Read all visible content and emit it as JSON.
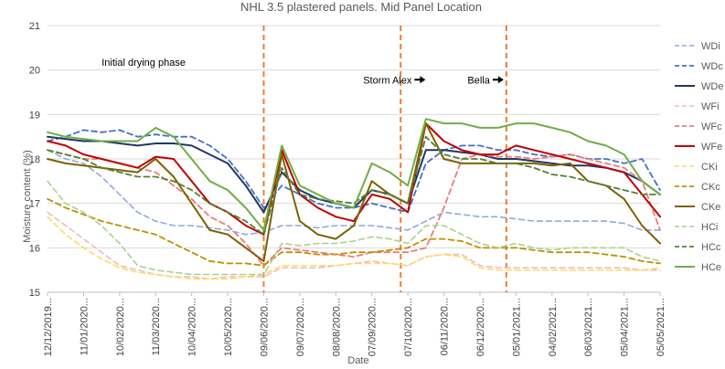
{
  "chart_data": {
    "type": "line",
    "title": "NHL 3.5 plastered panels. Mid Panel Location",
    "xlabel": "Date",
    "ylabel": "Moisture content (%)",
    "ylim": [
      15,
      21
    ],
    "yticks": [
      15,
      16,
      17,
      18,
      19,
      20,
      21
    ],
    "xlim": [
      "2019-12-12",
      "2021-05-05"
    ],
    "xticks": [
      {
        "date": "2019-12-12",
        "label": "12/12/2019..."
      },
      {
        "date": "2020-01-11",
        "label": "11/01/2020..."
      },
      {
        "date": "2020-02-10",
        "label": "10/02/2020..."
      },
      {
        "date": "2020-03-11",
        "label": "11/03/2020..."
      },
      {
        "date": "2020-04-10",
        "label": "10/04/2020..."
      },
      {
        "date": "2020-05-10",
        "label": "10/05/2020..."
      },
      {
        "date": "2020-06-09",
        "label": "09/06/2020..."
      },
      {
        "date": "2020-07-09",
        "label": "09/07/2020..."
      },
      {
        "date": "2020-08-08",
        "label": "08/08/2020..."
      },
      {
        "date": "2020-09-07",
        "label": "07/09/2020..."
      },
      {
        "date": "2020-10-07",
        "label": "07/10/2020..."
      },
      {
        "date": "2020-11-06",
        "label": "06/11/2020..."
      },
      {
        "date": "2020-12-06",
        "label": "06/12/2020..."
      },
      {
        "date": "2021-01-05",
        "label": "05/01/2021..."
      },
      {
        "date": "2021-02-04",
        "label": "04/02/2021..."
      },
      {
        "date": "2021-03-06",
        "label": "06/03/2021..."
      },
      {
        "date": "2021-04-05",
        "label": "05/04/2021..."
      },
      {
        "date": "2021-05-05",
        "label": "05/05/2021..."
      }
    ],
    "grid": "horizontal",
    "legend_position": "right",
    "annotations": [
      {
        "label": "Initial drying phase",
        "date": "2020-03-01",
        "y": 20.1,
        "arrow": false
      },
      {
        "label": "Storm Alex",
        "date": "2020-09-20",
        "y": 19.7,
        "arrow": true
      },
      {
        "label": "Bella",
        "date": "2020-12-05",
        "y": 19.7,
        "arrow": true
      }
    ],
    "event_lines": [
      {
        "date": "2020-06-09",
        "color": "#ed7d31"
      },
      {
        "date": "2020-10-01",
        "color": "#ed7d31"
      },
      {
        "date": "2020-12-28",
        "color": "#ed7d31"
      }
    ],
    "x": [
      "2019-12-12",
      "2019-12-27",
      "2020-01-11",
      "2020-01-26",
      "2020-02-10",
      "2020-02-25",
      "2020-03-11",
      "2020-03-26",
      "2020-04-10",
      "2020-04-25",
      "2020-05-10",
      "2020-05-25",
      "2020-06-09",
      "2020-06-24",
      "2020-07-09",
      "2020-07-24",
      "2020-08-08",
      "2020-08-23",
      "2020-09-07",
      "2020-09-22",
      "2020-10-07",
      "2020-10-22",
      "2020-11-06",
      "2020-11-21",
      "2020-12-06",
      "2020-12-21",
      "2021-01-05",
      "2021-01-20",
      "2021-02-04",
      "2021-02-19",
      "2021-03-06",
      "2021-03-21",
      "2021-04-05",
      "2021-04-20",
      "2021-05-05"
    ],
    "series": [
      {
        "name": "WDi",
        "color": "#8faadc",
        "dash": "6,4",
        "width": 1.6,
        "values": [
          18.2,
          18.0,
          17.9,
          17.6,
          17.2,
          16.8,
          16.6,
          16.5,
          16.5,
          16.45,
          16.4,
          16.3,
          16.35,
          16.5,
          16.5,
          16.45,
          16.5,
          16.5,
          16.5,
          16.45,
          16.4,
          16.6,
          16.8,
          16.75,
          16.7,
          16.7,
          16.65,
          16.6,
          16.6,
          16.6,
          16.6,
          16.6,
          16.55,
          16.4,
          16.4
        ]
      },
      {
        "name": "WDc",
        "color": "#4472c4",
        "dash": "6,4",
        "width": 1.8,
        "values": [
          18.4,
          18.5,
          18.65,
          18.6,
          18.65,
          18.5,
          18.55,
          18.5,
          18.5,
          18.3,
          18.0,
          17.5,
          16.9,
          17.4,
          17.2,
          17.0,
          16.9,
          16.9,
          17.0,
          16.9,
          16.8,
          17.9,
          18.2,
          18.3,
          18.3,
          18.2,
          18.2,
          18.1,
          18.05,
          18.1,
          18.0,
          18.0,
          17.9,
          18.0,
          17.3
        ]
      },
      {
        "name": "WDe",
        "color": "#203864",
        "dash": "",
        "width": 2.0,
        "values": [
          18.5,
          18.45,
          18.4,
          18.4,
          18.35,
          18.3,
          18.35,
          18.35,
          18.3,
          18.1,
          17.9,
          17.4,
          16.8,
          17.7,
          17.3,
          17.1,
          17.0,
          16.9,
          17.3,
          17.2,
          17.0,
          18.2,
          18.2,
          18.15,
          18.1,
          18.0,
          18.0,
          17.95,
          17.9,
          17.85,
          17.85,
          17.8,
          17.7,
          17.5,
          17.2
        ]
      },
      {
        "name": "WFi",
        "color": "#f4b9b9",
        "dash": "6,4",
        "width": 1.6,
        "values": [
          16.8,
          16.5,
          16.2,
          15.9,
          15.6,
          15.5,
          15.4,
          15.35,
          15.35,
          15.3,
          15.35,
          15.35,
          15.35,
          15.55,
          15.55,
          15.55,
          15.6,
          15.65,
          15.7,
          15.65,
          15.6,
          15.8,
          15.85,
          15.85,
          15.6,
          15.55,
          15.55,
          15.55,
          15.55,
          15.55,
          15.55,
          15.55,
          15.55,
          15.5,
          15.5
        ]
      },
      {
        "name": "WFc",
        "color": "#ec7c7c",
        "dash": "6,4",
        "width": 1.8,
        "values": [
          18.2,
          18.1,
          18.0,
          18.0,
          17.9,
          17.8,
          17.7,
          17.4,
          17.1,
          16.7,
          16.5,
          16.1,
          15.6,
          16.0,
          15.95,
          15.9,
          15.85,
          15.8,
          15.9,
          15.9,
          15.9,
          16.0,
          16.9,
          18.0,
          18.1,
          18.05,
          18.05,
          18.0,
          18.05,
          18.1,
          18.0,
          17.9,
          17.8,
          17.5,
          16.4
        ]
      },
      {
        "name": "WFe",
        "color": "#c00000",
        "dash": "",
        "width": 2.0,
        "values": [
          18.4,
          18.3,
          18.1,
          18.0,
          17.9,
          17.8,
          18.05,
          18.0,
          17.5,
          17.0,
          16.8,
          16.5,
          16.3,
          18.2,
          17.2,
          16.9,
          16.7,
          16.6,
          17.2,
          17.1,
          16.8,
          18.8,
          18.4,
          18.2,
          18.1,
          18.1,
          18.3,
          18.2,
          18.1,
          18.0,
          17.9,
          17.8,
          17.7,
          17.2,
          16.7
        ]
      },
      {
        "name": "CKi",
        "color": "#ffd966",
        "dash": "6,4",
        "width": 1.6,
        "values": [
          16.7,
          16.3,
          16.0,
          15.75,
          15.55,
          15.45,
          15.4,
          15.35,
          15.3,
          15.3,
          15.3,
          15.35,
          15.4,
          15.6,
          15.6,
          15.6,
          15.6,
          15.65,
          15.65,
          15.65,
          15.6,
          15.8,
          15.85,
          15.8,
          15.55,
          15.5,
          15.5,
          15.5,
          15.5,
          15.5,
          15.5,
          15.5,
          15.5,
          15.5,
          15.55
        ]
      },
      {
        "name": "CKc",
        "color": "#bf9000",
        "dash": "6,4",
        "width": 1.8,
        "values": [
          17.1,
          16.9,
          16.75,
          16.6,
          16.5,
          16.4,
          16.3,
          16.1,
          15.9,
          15.7,
          15.65,
          15.65,
          15.6,
          15.9,
          15.9,
          15.85,
          15.85,
          15.9,
          15.9,
          15.95,
          16.0,
          16.2,
          16.2,
          16.15,
          16.0,
          16.0,
          16.0,
          15.95,
          15.9,
          15.9,
          15.9,
          15.85,
          15.8,
          15.7,
          15.65
        ]
      },
      {
        "name": "CKe",
        "color": "#7f6000",
        "dash": "",
        "width": 2.0,
        "values": [
          18.0,
          17.9,
          17.85,
          17.8,
          17.75,
          17.7,
          18.0,
          17.6,
          17.0,
          16.4,
          16.3,
          16.0,
          15.7,
          18.1,
          16.6,
          16.3,
          16.2,
          16.5,
          17.5,
          17.2,
          17.0,
          18.8,
          18.0,
          17.9,
          17.9,
          17.9,
          17.9,
          17.9,
          17.85,
          17.9,
          17.5,
          17.4,
          17.1,
          16.5,
          16.1
        ]
      },
      {
        "name": "HCi",
        "color": "#a9d18e",
        "dash": "6,4",
        "width": 1.6,
        "values": [
          17.5,
          17.0,
          16.8,
          16.5,
          16.1,
          15.6,
          15.5,
          15.45,
          15.4,
          15.4,
          15.4,
          15.4,
          15.4,
          16.1,
          16.05,
          16.1,
          16.1,
          16.15,
          16.25,
          16.2,
          16.1,
          16.5,
          16.5,
          16.3,
          16.1,
          16.0,
          16.1,
          16.0,
          15.95,
          16.0,
          16.0,
          16.0,
          16.0,
          15.8,
          15.7
        ]
      },
      {
        "name": "HCc",
        "color": "#548235",
        "dash": "6,4",
        "width": 1.8,
        "values": [
          18.2,
          18.1,
          18.0,
          17.8,
          17.7,
          17.6,
          17.6,
          17.5,
          17.3,
          17.0,
          16.8,
          16.6,
          16.3,
          17.8,
          17.2,
          17.1,
          17.05,
          17.0,
          17.3,
          17.2,
          17.0,
          18.5,
          18.1,
          18.0,
          18.0,
          17.9,
          17.9,
          17.8,
          17.65,
          17.6,
          17.5,
          17.4,
          17.3,
          17.2,
          17.2
        ]
      },
      {
        "name": "HCe",
        "color": "#70ad47",
        "dash": "",
        "width": 2.0,
        "values": [
          18.6,
          18.5,
          18.45,
          18.4,
          18.4,
          18.4,
          18.7,
          18.5,
          18.0,
          17.5,
          17.3,
          16.9,
          16.4,
          18.3,
          17.4,
          17.2,
          17.0,
          16.9,
          17.9,
          17.7,
          17.4,
          18.9,
          18.8,
          18.8,
          18.7,
          18.7,
          18.8,
          18.8,
          18.7,
          18.6,
          18.4,
          18.3,
          18.1,
          17.5,
          17.2
        ]
      }
    ]
  }
}
